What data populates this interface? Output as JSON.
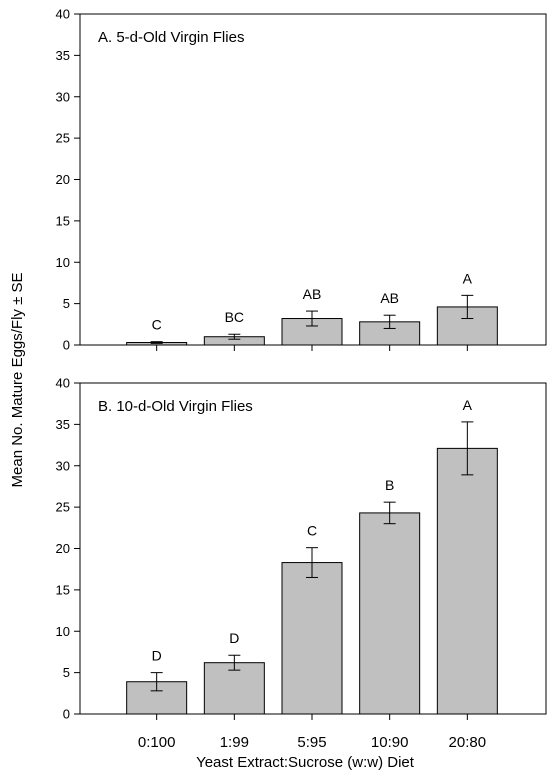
{
  "figure": {
    "ylabel": "Mean No. Mature Eggs/Fly ± SE",
    "xlabel": "Yeast Extract:Sucrose (w:w) Diet"
  },
  "chart_data": [
    {
      "type": "bar",
      "title": "A.  5-d-Old Virgin Flies",
      "categories": [
        "0:100",
        "1:99",
        "5:95",
        "10:90",
        "20:80"
      ],
      "values": [
        0.3,
        1.0,
        3.2,
        2.8,
        4.6
      ],
      "errors": [
        0.1,
        0.3,
        0.9,
        0.8,
        1.4
      ],
      "letters": [
        "C",
        "BC",
        "AB",
        "AB",
        "A"
      ],
      "ylim": [
        0,
        40
      ],
      "yticks": [
        0,
        5,
        10,
        15,
        20,
        25,
        30,
        35,
        40
      ],
      "bar_color": "#c0c0c0",
      "show_xticklabels": false,
      "grid": false
    },
    {
      "type": "bar",
      "title": "B.  10-d-Old Virgin Flies",
      "categories": [
        "0:100",
        "1:99",
        "5:95",
        "10:90",
        "20:80"
      ],
      "values": [
        3.9,
        6.2,
        18.3,
        24.3,
        32.1
      ],
      "errors": [
        1.1,
        0.9,
        1.8,
        1.3,
        3.2
      ],
      "letters": [
        "D",
        "D",
        "C",
        "B",
        "A"
      ],
      "ylim": [
        0,
        40
      ],
      "yticks": [
        0,
        5,
        10,
        15,
        20,
        25,
        30,
        35,
        40
      ],
      "bar_color": "#c0c0c0",
      "show_xticklabels": true,
      "grid": false
    }
  ]
}
